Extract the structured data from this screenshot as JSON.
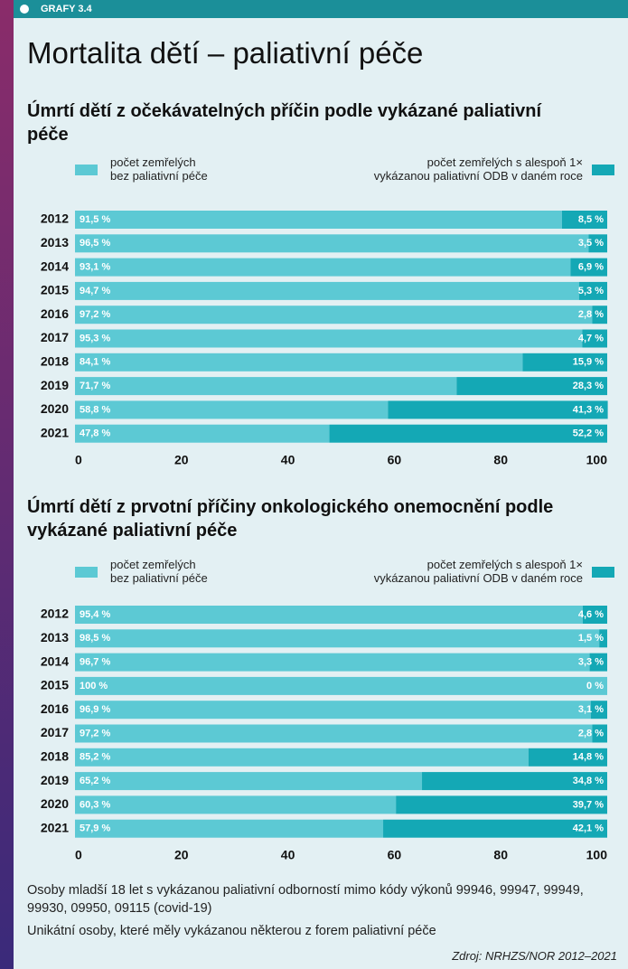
{
  "header": {
    "tag": "GRAFY 3.4",
    "title": "Mortalita dětí – paliativní péče"
  },
  "chart_data": [
    {
      "type": "bar",
      "orientation": "horizontal",
      "stacked": true,
      "title": "Úmrtí dětí z očekávatelných příčin podle vykázané paliativní péče",
      "categories": [
        "2012",
        "2013",
        "2014",
        "2015",
        "2016",
        "2017",
        "2018",
        "2019",
        "2020",
        "2021"
      ],
      "series": [
        {
          "name": "počet zemřelých\nbez paliativní péče",
          "color": "#5cc9d4",
          "values": [
            91.5,
            96.5,
            93.1,
            94.7,
            97.2,
            95.3,
            84.1,
            71.7,
            58.8,
            47.8
          ],
          "value_labels": [
            "91,5 %",
            "96,5 %",
            "93,1 %",
            "94,7 %",
            "97,2 %",
            "95,3 %",
            "84,1 %",
            "71,7 %",
            "58,8 %",
            "47,8 %"
          ]
        },
        {
          "name": "počet zemřelých s alespoň 1×\nvykázanou paliativní ODB v daném roce",
          "color": "#14a8b5",
          "values": [
            8.5,
            3.5,
            6.9,
            5.3,
            2.8,
            4.7,
            15.9,
            28.3,
            41.3,
            52.2
          ],
          "value_labels": [
            "8,5 %",
            "3,5 %",
            "6,9 %",
            "5,3 %",
            "2,8 %",
            "4,7 %",
            "15,9 %",
            "28,3 %",
            "41,3 %",
            "52,2 %"
          ]
        }
      ],
      "xlim": [
        0,
        100
      ],
      "xticks": [
        0,
        20,
        40,
        60,
        80,
        100
      ]
    },
    {
      "type": "bar",
      "orientation": "horizontal",
      "stacked": true,
      "title": "Úmrtí dětí z prvotní příčiny onkologického onemocnění podle vykázané paliativní péče",
      "categories": [
        "2012",
        "2013",
        "2014",
        "2015",
        "2016",
        "2017",
        "2018",
        "2019",
        "2020",
        "2021"
      ],
      "series": [
        {
          "name": "počet zemřelých\nbez paliativní péče",
          "color": "#5cc9d4",
          "values": [
            95.4,
            98.5,
            96.7,
            100,
            96.9,
            97.2,
            85.2,
            65.2,
            60.3,
            57.9
          ],
          "value_labels": [
            "95,4 %",
            "98,5 %",
            "96,7 %",
            "100 %",
            "96,9 %",
            "97,2 %",
            "85,2 %",
            "65,2 %",
            "60,3 %",
            "57,9 %"
          ]
        },
        {
          "name": "počet zemřelých s alespoň 1×\nvykázanou paliativní ODB v daném roce",
          "color": "#14a8b5",
          "values": [
            4.6,
            1.5,
            3.3,
            0,
            3.1,
            2.8,
            14.8,
            34.8,
            39.7,
            42.1
          ],
          "value_labels": [
            "4,6 %",
            "1,5 %",
            "3,3 %",
            "0 %",
            "3,1 %",
            "2,8 %",
            "14,8 %",
            "34,8 %",
            "39,7 %",
            "42,1 %"
          ]
        }
      ],
      "xlim": [
        0,
        100
      ],
      "xticks": [
        0,
        20,
        40,
        60,
        80,
        100
      ]
    }
  ],
  "notes": [
    "Osoby mladší 18 let s vykázanou paliativní odborností mimo kódy výkonů 99946, 99947, 99949, 99930, 09950, 09115 (covid-19)",
    "Unikátní osoby, které měly vykázanou některou z forem paliativní péče"
  ],
  "source": "Zdroj: NRHZS/NOR 2012–2021"
}
